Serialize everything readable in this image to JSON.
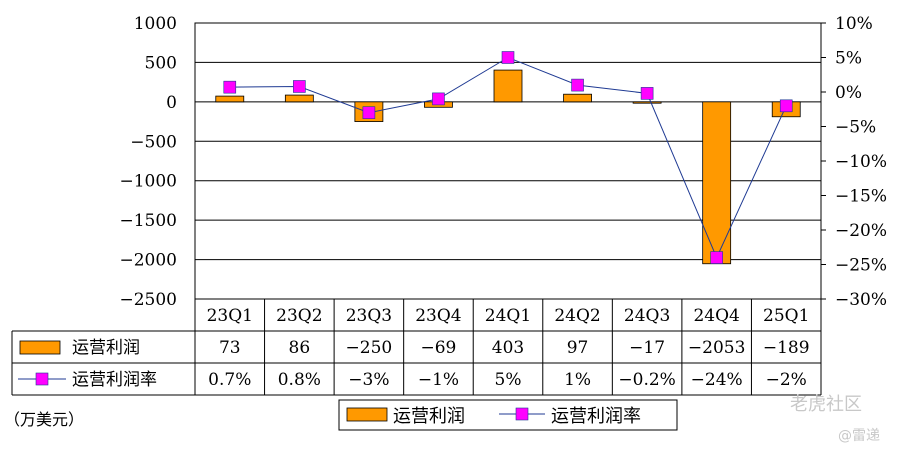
{
  "chart_data": {
    "type": "bar",
    "categories": [
      "23Q1",
      "23Q2",
      "23Q3",
      "23Q4",
      "24Q1",
      "24Q2",
      "24Q3",
      "24Q4",
      "25Q1"
    ],
    "series": [
      {
        "name": "运营利润",
        "type": "bar",
        "axis": "left",
        "values": [
          73,
          86,
          -250,
          -69,
          403,
          97,
          -17,
          -2053,
          -189
        ],
        "color": "#ff9900"
      },
      {
        "name": "运营利润率",
        "type": "line",
        "axis": "right",
        "values": [
          0.7,
          0.8,
          -3,
          -1,
          5,
          1,
          -0.2,
          -24,
          -2
        ],
        "color": "#ff00ff",
        "line_color": "#1f3a93"
      }
    ],
    "ylim_left": [
      -2500,
      1000
    ],
    "yticks_left": [
      "1000",
      "500",
      "0",
      "−500",
      "−1000",
      "−1500",
      "−2000",
      "−2500"
    ],
    "ylim_right": [
      -30,
      10
    ],
    "yticks_right": [
      "10%",
      "5%",
      "0%",
      "−5%",
      "−10%",
      "−15%",
      "−20%",
      "−25%",
      "−30%"
    ],
    "table": {
      "rows": [
        {
          "label": "运营利润",
          "cells": [
            "73",
            "86",
            "−250",
            "−69",
            "403",
            "97",
            "−17",
            "−2053",
            "−189"
          ]
        },
        {
          "label": "运营利润率",
          "cells": [
            "0.7%",
            "0.8%",
            "−3%",
            "−1%",
            "5%",
            "1%",
            "−0.2%",
            "−24%",
            "−2%"
          ]
        }
      ]
    },
    "unit": "（万美元）",
    "grid": true,
    "legend_position": "bottom"
  },
  "watermarks": [
    "老虎社区",
    "@雷递"
  ]
}
